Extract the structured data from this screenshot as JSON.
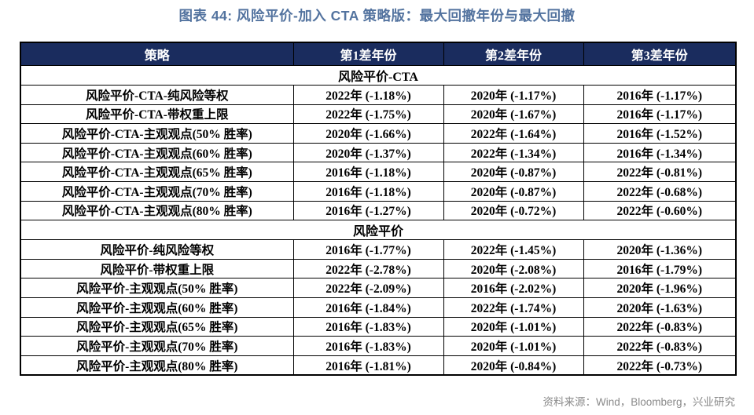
{
  "page": {
    "title": "图表 44: 风险平价-加入 CTA 策略版：最大回撤年份与最大回撤",
    "source_note": "资料来源：Wind，Bloomberg，兴业研究"
  },
  "colors": {
    "title_blue": "#53739F",
    "header_bg": "#1A2C5E",
    "header_text": "#FFFFFF",
    "table_border": "#000000",
    "source_gray": "#8A8A8A"
  },
  "table": {
    "columns": [
      "策略",
      "第1差年份",
      "第2差年份",
      "第3差年份"
    ],
    "sections": [
      {
        "title": "风险平价-CTA",
        "rows": [
          {
            "strategy": "风险平价-CTA-纯风险等权",
            "cells": [
              "2022年 (-1.18%)",
              "2020年 (-1.17%)",
              "2016年 (-1.17%)"
            ]
          },
          {
            "strategy": "风险平价-CTA-带权重上限",
            "cells": [
              "2022年 (-1.75%)",
              "2020年 (-1.67%)",
              "2016年 (-1.17%)"
            ]
          },
          {
            "strategy": "风险平价-CTA-主观观点(50% 胜率)",
            "cells": [
              "2020年 (-1.66%)",
              "2022年 (-1.64%)",
              "2016年 (-1.52%)"
            ]
          },
          {
            "strategy": "风险平价-CTA-主观观点(60% 胜率)",
            "cells": [
              "2020年 (-1.37%)",
              "2022年 (-1.34%)",
              "2016年 (-1.34%)"
            ]
          },
          {
            "strategy": "风险平价-CTA-主观观点(65% 胜率)",
            "cells": [
              "2016年 (-1.18%)",
              "2020年 (-0.87%)",
              "2022年 (-0.81%)"
            ]
          },
          {
            "strategy": "风险平价-CTA-主观观点(70% 胜率)",
            "cells": [
              "2016年 (-1.18%)",
              "2020年 (-0.87%)",
              "2022年 (-0.68%)"
            ]
          },
          {
            "strategy": "风险平价-CTA-主观观点(80% 胜率)",
            "cells": [
              "2016年 (-1.27%)",
              "2020年 (-0.72%)",
              "2022年 (-0.60%)"
            ]
          }
        ]
      },
      {
        "title": "风险平价",
        "rows": [
          {
            "strategy": "风险平价-纯风险等权",
            "cells": [
              "2016年 (-1.77%)",
              "2022年 (-1.45%)",
              "2020年 (-1.36%)"
            ]
          },
          {
            "strategy": "风险平价-带权重上限",
            "cells": [
              "2022年 (-2.78%)",
              "2020年 (-2.08%)",
              "2016年 (-1.79%)"
            ]
          },
          {
            "strategy": "风险平价-主观观点(50% 胜率)",
            "cells": [
              "2022年 (-2.09%)",
              "2016年 (-2.02%)",
              "2020年 (-1.96%)"
            ]
          },
          {
            "strategy": "风险平价-主观观点(60% 胜率)",
            "cells": [
              "2016年 (-1.84%)",
              "2022年 (-1.74%)",
              "2020年 (-1.63%)"
            ]
          },
          {
            "strategy": "风险平价-主观观点(65% 胜率)",
            "cells": [
              "2016年 (-1.83%)",
              "2020年 (-1.01%)",
              "2022年 (-0.83%)"
            ]
          },
          {
            "strategy": "风险平价-主观观点(70% 胜率)",
            "cells": [
              "2016年 (-1.83%)",
              "2020年 (-1.01%)",
              "2022年 (-0.83%)"
            ]
          },
          {
            "strategy": "风险平价-主观观点(80% 胜率)",
            "cells": [
              "2016年 (-1.81%)",
              "2020年 (-0.84%)",
              "2022年 (-0.73%)"
            ]
          }
        ]
      }
    ]
  }
}
